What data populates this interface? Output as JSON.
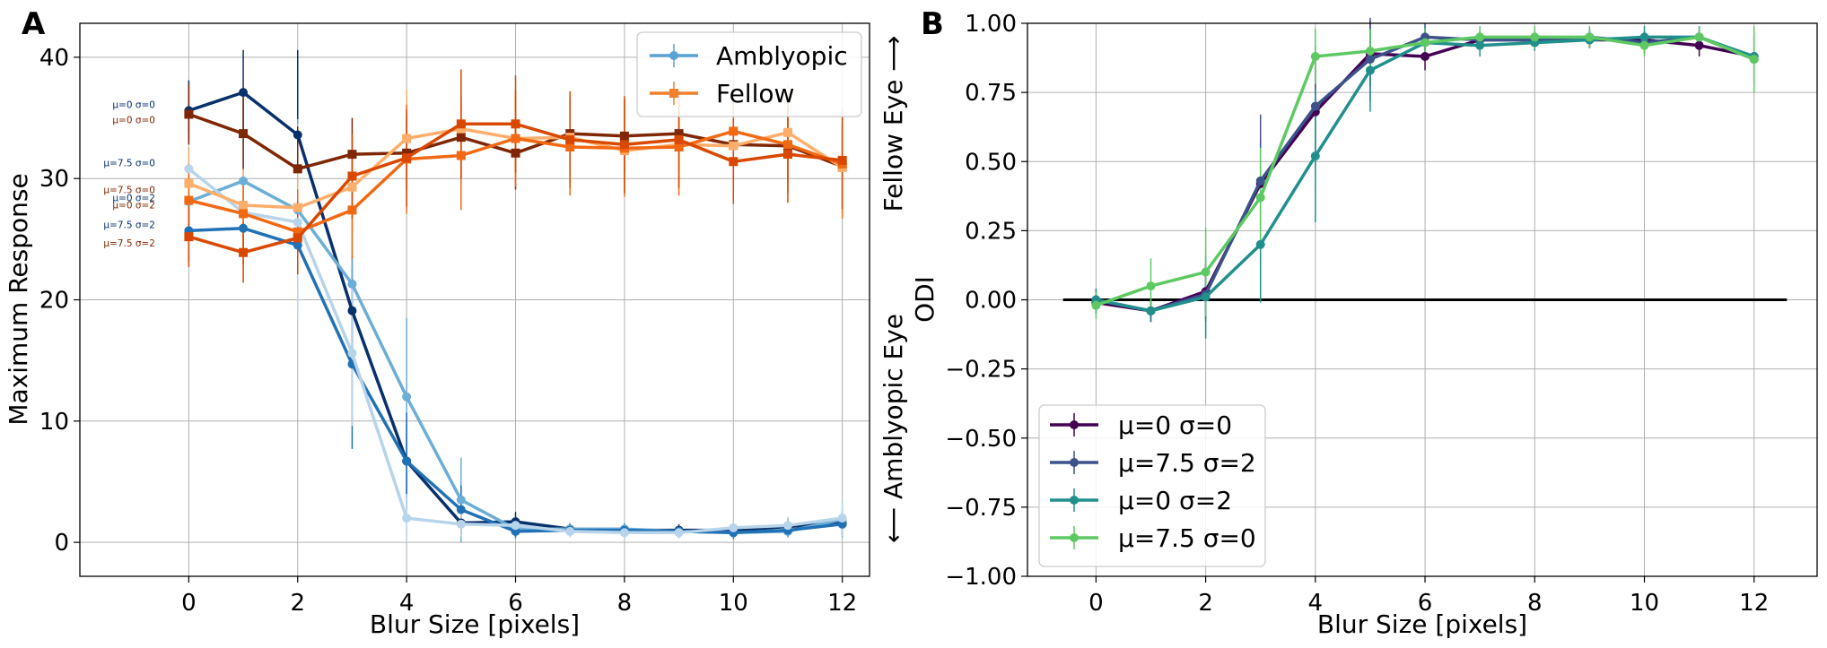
{
  "figure": {
    "panel_a_letter": "A",
    "panel_b_letter": "B"
  },
  "chart_data": [
    {
      "type": "line",
      "panel": "A",
      "title": "",
      "xlabel": "Blur Size [pixels]",
      "ylabel": "Maximum Response",
      "xlim": [
        -2,
        12.5
      ],
      "ylim": [
        -2.8,
        42.8
      ],
      "xticks": [
        "0",
        "2",
        "4",
        "6",
        "8",
        "10",
        "12"
      ],
      "yticks": [
        "0",
        "10",
        "20",
        "30",
        "40"
      ],
      "grid": true,
      "legend_position": "top-right",
      "legend": [
        {
          "label": "Amblyopic",
          "color": "#5aa2d2"
        },
        {
          "label": "Fellow",
          "color": "#f07f2f"
        }
      ],
      "x": [
        0,
        1,
        2,
        3,
        4,
        5,
        6,
        7,
        8,
        9,
        10,
        11,
        12
      ],
      "series": [
        {
          "group": "Amblyopic",
          "params": "μ=0 σ=0",
          "color": "#08306b",
          "marker": "circle",
          "values": [
            35.6,
            37.1,
            33.6,
            19.1,
            6.7,
            1.6,
            1.7,
            1.1,
            1.0,
            1.0,
            1.0,
            1.3,
            1.6
          ],
          "err": [
            2.5,
            3.5,
            7.0,
            4.5,
            3.0,
            1.0,
            0.8,
            0.5,
            0.5,
            0.5,
            0.5,
            0.7,
            1.0
          ]
        },
        {
          "group": "Amblyopic",
          "params": "μ=7.5 σ=0",
          "color": "#6baed6",
          "marker": "circle",
          "values": [
            28.1,
            29.8,
            27.4,
            21.3,
            12.0,
            3.5,
            1.1,
            1.1,
            1.1,
            0.9,
            0.8,
            0.9,
            1.9
          ],
          "err": [
            3.0,
            4.0,
            7.5,
            6.0,
            6.5,
            3.5,
            0.8,
            0.5,
            0.5,
            0.5,
            0.5,
            0.5,
            1.5
          ]
        },
        {
          "group": "Amblyopic",
          "params": "μ=7.5 σ=2",
          "color": "#2171b5",
          "marker": "circle",
          "values": [
            25.7,
            25.9,
            24.5,
            14.7,
            6.7,
            2.7,
            0.9,
            1.0,
            1.0,
            0.9,
            0.8,
            1.0,
            1.5
          ],
          "err": [
            2.5,
            3.0,
            5.0,
            7.0,
            4.0,
            2.0,
            0.5,
            0.5,
            0.5,
            0.5,
            0.5,
            0.5,
            1.0
          ]
        },
        {
          "group": "Amblyopic",
          "params": "μ=0 σ=2",
          "color": "#b7d4ea",
          "marker": "circle",
          "values": [
            30.8,
            27.2,
            26.4,
            15.6,
            2.0,
            1.5,
            1.4,
            0.9,
            0.8,
            0.8,
            1.2,
            1.4,
            2.0
          ],
          "err": [
            3.0,
            4.0,
            8.0,
            6.0,
            2.0,
            1.0,
            0.6,
            0.5,
            0.5,
            0.5,
            0.6,
            0.7,
            1.5
          ]
        },
        {
          "group": "Fellow",
          "params": "μ=0 σ=0",
          "color": "#7f2704",
          "marker": "square",
          "values": [
            35.3,
            33.7,
            30.8,
            32.0,
            32.1,
            33.4,
            32.1,
            33.7,
            33.5,
            33.7,
            32.8,
            32.7,
            31.0
          ],
          "err": [
            2.5,
            3.0,
            3.5,
            3.0,
            3.0,
            3.5,
            3.0,
            3.0,
            3.0,
            3.0,
            3.0,
            3.0,
            3.5
          ]
        },
        {
          "group": "Fellow",
          "params": "μ=7.5 σ=0",
          "color": "#fdae6b",
          "marker": "square",
          "values": [
            29.6,
            27.8,
            27.6,
            29.3,
            33.3,
            34.1,
            33.3,
            33.4,
            32.3,
            32.8,
            32.7,
            33.8,
            30.9
          ],
          "err": [
            3.0,
            3.0,
            3.5,
            3.5,
            4.0,
            4.0,
            3.5,
            3.5,
            3.5,
            3.5,
            3.5,
            4.0,
            4.0
          ]
        },
        {
          "group": "Fellow",
          "params": "μ=0 σ=2",
          "color": "#f16913",
          "marker": "square",
          "values": [
            28.2,
            27.1,
            25.6,
            27.4,
            31.6,
            31.9,
            33.3,
            32.6,
            32.5,
            32.6,
            33.9,
            32.8,
            31.2
          ],
          "err": [
            3.0,
            3.0,
            3.5,
            4.0,
            4.5,
            4.5,
            4.0,
            4.0,
            4.0,
            4.0,
            4.0,
            4.0,
            4.5
          ]
        },
        {
          "group": "Fellow",
          "params": "μ=7.5 σ=2",
          "color": "#d94801",
          "marker": "square",
          "values": [
            25.2,
            23.9,
            25.1,
            30.2,
            31.7,
            34.5,
            34.5,
            33.2,
            32.8,
            33.2,
            31.4,
            32.0,
            31.5
          ],
          "err": [
            2.5,
            2.5,
            3.0,
            3.5,
            4.0,
            4.5,
            4.0,
            4.0,
            4.0,
            4.0,
            3.5,
            4.0,
            4.0
          ]
        }
      ],
      "annotations": [
        {
          "text": "μ=0 σ=0",
          "color": "#08306b",
          "y": 35.6
        },
        {
          "text": "μ=0 σ=0",
          "color": "#7f2704",
          "y": 35.3
        },
        {
          "text": "μ=7.5 σ=0",
          "color": "#08306b",
          "y": 30.8
        },
        {
          "text": "μ=7.5 σ=0",
          "color": "#7f2704",
          "y": 29.6
        },
        {
          "text": "μ=0 σ=2",
          "color": "#08306b",
          "y": 28.2
        },
        {
          "text": "μ=0 σ=2",
          "color": "#7f2704",
          "y": 28.2
        },
        {
          "text": "μ=7.5 σ=2",
          "color": "#08306b",
          "y": 25.7
        },
        {
          "text": "μ=7.5 σ=2",
          "color": "#7f2704",
          "y": 25.2
        }
      ]
    },
    {
      "type": "line",
      "panel": "B",
      "title": "",
      "xlabel": "Blur Size [pixels]",
      "ylabel": "ODI",
      "ylabel_top": "Fellow Eye ⟶",
      "ylabel_bottom": "⟵ Amblyopic Eye",
      "xlim": [
        -1.25,
        13.15
      ],
      "ylim": [
        -1.0,
        1.0
      ],
      "xticks": [
        "0",
        "2",
        "4",
        "6",
        "8",
        "10",
        "12"
      ],
      "yticks": [
        "1.00",
        "0.75",
        "0.50",
        "0.25",
        "0.00",
        "−0.25",
        "−0.50",
        "−0.75",
        "−1.00"
      ],
      "grid": true,
      "legend_position": "bottom-left",
      "zero_line": {
        "x_start": -0.6,
        "x_end": 12.6,
        "y": 0
      },
      "x": [
        0,
        1,
        2,
        3,
        4,
        5,
        6,
        7,
        8,
        9,
        10,
        11,
        12
      ],
      "series": [
        {
          "name": "μ=0 σ=0",
          "color": "#440154",
          "values": [
            -0.01,
            -0.04,
            0.03,
            0.42,
            0.68,
            0.89,
            0.88,
            0.94,
            0.94,
            0.94,
            0.94,
            0.92,
            0.88
          ],
          "err": [
            0.04,
            0.04,
            0.1,
            0.15,
            0.18,
            0.12,
            0.05,
            0.03,
            0.03,
            0.03,
            0.03,
            0.04,
            0.08
          ]
        },
        {
          "name": "μ=7.5 σ=2",
          "color": "#3b528b",
          "values": [
            0.0,
            -0.04,
            0.02,
            0.43,
            0.7,
            0.87,
            0.95,
            0.94,
            0.94,
            0.95,
            0.93,
            0.95,
            0.87
          ],
          "err": [
            0.04,
            0.04,
            0.1,
            0.24,
            0.22,
            0.15,
            0.05,
            0.03,
            0.03,
            0.03,
            0.04,
            0.04,
            0.08
          ]
        },
        {
          "name": "μ=0 σ=2",
          "color": "#21908d",
          "values": [
            0.0,
            -0.04,
            0.01,
            0.2,
            0.52,
            0.83,
            0.93,
            0.92,
            0.93,
            0.94,
            0.95,
            0.95,
            0.88
          ],
          "err": [
            0.04,
            0.04,
            0.15,
            0.21,
            0.24,
            0.15,
            0.06,
            0.04,
            0.03,
            0.03,
            0.04,
            0.04,
            0.1
          ]
        },
        {
          "name": "μ=7.5 σ=0",
          "color": "#5ec962",
          "values": [
            -0.02,
            0.05,
            0.1,
            0.37,
            0.88,
            0.9,
            0.93,
            0.95,
            0.95,
            0.95,
            0.92,
            0.95,
            0.87
          ],
          "err": [
            0.05,
            0.1,
            0.16,
            0.18,
            0.1,
            0.08,
            0.05,
            0.04,
            0.04,
            0.04,
            0.04,
            0.04,
            0.12
          ]
        }
      ]
    }
  ]
}
